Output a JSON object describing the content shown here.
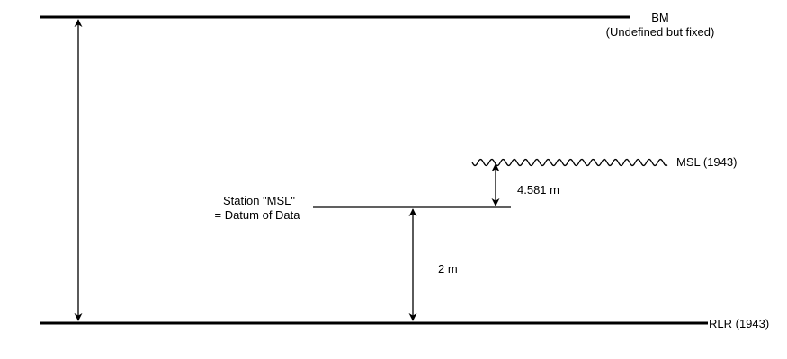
{
  "labels": {
    "bm": "BM",
    "bm_note": "(Undefined but fixed)",
    "msl": "MSL (1943)",
    "station_line1": "Station \"MSL\"",
    "station_line2": "= Datum of Data",
    "rlr": "RLR (1943)"
  },
  "measurements": {
    "msl_above_station": "4.581 m",
    "station_above_rlr": "2 m"
  },
  "colors": {
    "line": "#000000",
    "background": "#ffffff"
  }
}
